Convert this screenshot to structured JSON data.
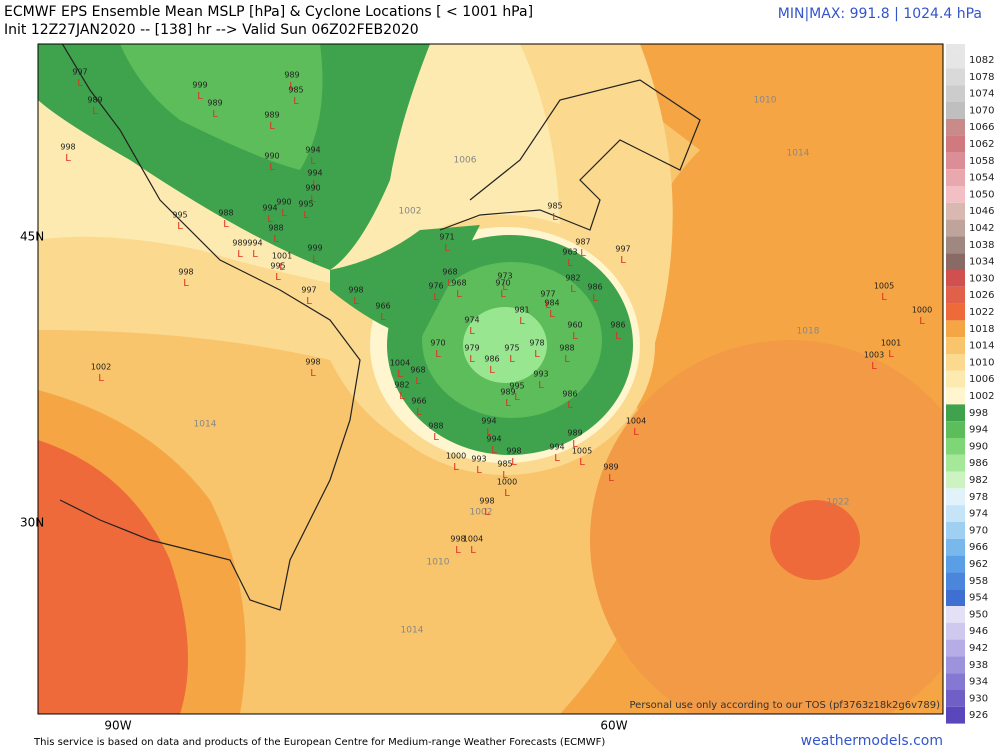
{
  "header": {
    "title": "ECMWF EPS Ensemble Mean MSLP [hPa] & Cyclone Locations [ < 1001 hPa]",
    "subtitle": "Init 12Z27JAN2020 -- [138] hr --> Valid Sun 06Z02FEB2020",
    "minmax": "MIN|MAX: 991.8 | 1024.4 hPa"
  },
  "map": {
    "lat_labels": [
      "45N",
      "30N"
    ],
    "lon_labels": [
      "90W",
      "60W"
    ],
    "contour_labels": [
      1010,
      1014,
      1006,
      1002,
      1018,
      1014,
      1022,
      1010,
      1014,
      1002
    ],
    "cyclone_pressures": [
      997,
      989,
      998,
      999,
      989,
      989,
      985,
      989,
      994,
      990,
      994,
      990,
      995,
      988,
      994,
      990,
      995,
      988,
      989,
      994,
      1001,
      995,
      999,
      997,
      998,
      998,
      1002,
      998,
      971,
      966,
      968,
      968,
      976,
      973,
      970,
      981,
      977,
      984,
      960,
      986,
      986,
      997,
      963,
      982,
      974,
      970,
      979,
      986,
      975,
      978,
      988,
      993,
      995,
      989,
      986,
      1004,
      982,
      968,
      966,
      988,
      994,
      994,
      1000,
      993,
      998,
      985,
      994,
      989,
      1005,
      1004,
      989,
      1000,
      998,
      998,
      1004,
      1005,
      1000,
      1001,
      1003,
      985,
      987
    ],
    "cyclone_marker": "L",
    "marker_color": "#e03020",
    "watermark": "Personal use only according to our TOS (pf3763z18k2g6v789)"
  },
  "colorbar": {
    "labels": [
      1082,
      1078,
      1074,
      1070,
      1066,
      1062,
      1058,
      1054,
      1050,
      1046,
      1042,
      1038,
      1034,
      1030,
      1026,
      1022,
      1018,
      1014,
      1010,
      1006,
      1002,
      998,
      994,
      990,
      986,
      982,
      978,
      974,
      970,
      966,
      962,
      958,
      954,
      950,
      946,
      942,
      938,
      934,
      930,
      926
    ],
    "colors": [
      "#e6e6e6",
      "#d9d9d9",
      "#cccccc",
      "#bfbfbf",
      "#c98a8a",
      "#d07a80",
      "#dc8e96",
      "#e9a8ae",
      "#f2c0c4",
      "#d8b8b0",
      "#bfa49c",
      "#9e8880",
      "#8a6a64",
      "#d05050",
      "#e0604a",
      "#ee6a3a",
      "#f5a544",
      "#f8c46c",
      "#fbd98f",
      "#fdeab0",
      "#fff5cf",
      "#3fa34d",
      "#5dbd5a",
      "#7fd676",
      "#a6e89a",
      "#cdf3c3",
      "#e2f2fb",
      "#c5e4f7",
      "#9fd0f2",
      "#78b8ec",
      "#5a9ee5",
      "#4a86dc",
      "#3f6fd0",
      "#e4e0f5",
      "#cfc8ef",
      "#b6ade6",
      "#9d92dc",
      "#8578d2",
      "#6f5fc7",
      "#5a47bb"
    ]
  },
  "footer": {
    "credit": "This service is based on data and products of the European Centre for Medium-range Weather Forecasts (ECMWF)",
    "site": "weathermodels.com"
  }
}
